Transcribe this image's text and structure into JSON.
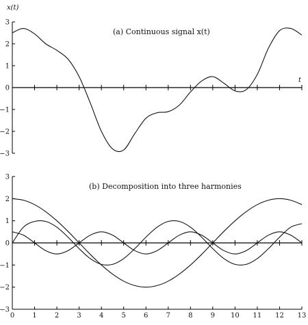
{
  "chart_data": [
    {
      "type": "line",
      "title": "(a) Continuous signal x(t)",
      "ylabel": "x(t)",
      "xlabel": "t",
      "xlim": [
        0,
        13
      ],
      "ylim": [
        -3,
        3
      ],
      "yticks": [
        -3,
        -2,
        -1,
        0,
        1,
        2,
        3
      ],
      "xticks": [
        0,
        1,
        2,
        3,
        4,
        5,
        6,
        7,
        8,
        9,
        10,
        11,
        12,
        13
      ],
      "grid": false,
      "legend": "none",
      "series": [
        {
          "x": [
            0,
            0.5,
            1,
            1.5,
            2,
            2.5,
            3,
            3.5,
            4,
            4.5,
            5,
            5.5,
            6,
            6.5,
            7,
            7.5,
            8,
            8.5,
            9,
            9.5,
            10,
            10.5,
            11,
            11.5,
            12,
            12.5,
            13
          ],
          "values": [
            2.5,
            2.7,
            2.45,
            2.0,
            1.7,
            1.3,
            0.5,
            -0.7,
            -2.0,
            -2.8,
            -2.85,
            -2.1,
            -1.4,
            -1.15,
            -1.1,
            -0.8,
            -0.2,
            0.3,
            0.5,
            0.2,
            -0.15,
            -0.1,
            0.6,
            1.8,
            2.6,
            2.7,
            2.4
          ]
        }
      ]
    },
    {
      "type": "line",
      "title": "(b) Decomposition into three harmonies",
      "ylabel": "",
      "xlabel": "",
      "xlim": [
        0,
        13
      ],
      "ylim": [
        -3,
        3
      ],
      "yticks": [
        -3,
        -2,
        -1,
        0,
        1,
        2,
        3
      ],
      "xticks": [
        0,
        1,
        2,
        3,
        4,
        5,
        6,
        7,
        8,
        9,
        10,
        11,
        12,
        13
      ],
      "grid": false,
      "legend": "none",
      "series": [
        {
          "x": [
            0,
            0.5,
            1,
            1.5,
            2,
            2.5,
            3,
            3.5,
            4,
            4.5,
            5,
            5.5,
            6,
            6.5,
            7,
            7.5,
            8,
            8.5,
            9,
            9.5,
            10,
            10.5,
            11,
            11.5,
            12,
            12.5,
            13
          ],
          "values": [
            2.0,
            1.93,
            1.73,
            1.41,
            1.0,
            0.52,
            0.0,
            -0.52,
            -1.0,
            -1.41,
            -1.73,
            -1.93,
            -2.0,
            -1.93,
            -1.73,
            -1.41,
            -1.0,
            -0.52,
            0.0,
            0.52,
            1.0,
            1.41,
            1.73,
            1.93,
            2.0,
            1.93,
            1.73
          ]
        },
        {
          "x": [
            0,
            0.5,
            1,
            1.5,
            2,
            2.5,
            3,
            3.5,
            4,
            4.5,
            5,
            5.5,
            6,
            6.5,
            7,
            7.5,
            8,
            8.5,
            9,
            9.5,
            10,
            10.5,
            11,
            11.5,
            12,
            12.5,
            13
          ],
          "values": [
            0.0,
            0.71,
            0.97,
            0.97,
            0.71,
            0.26,
            -0.26,
            -0.71,
            -0.97,
            -0.97,
            -0.71,
            -0.26,
            0.26,
            0.71,
            0.97,
            0.97,
            0.71,
            0.26,
            -0.26,
            -0.71,
            -0.97,
            -0.97,
            -0.71,
            -0.26,
            0.26,
            0.71,
            0.87
          ]
        },
        {
          "x": [
            0,
            0.5,
            1,
            1.5,
            2,
            2.5,
            3,
            3.5,
            4,
            4.5,
            5,
            5.5,
            6,
            6.5,
            7,
            7.5,
            8,
            8.5,
            9,
            9.5,
            10,
            10.5,
            11,
            11.5,
            12,
            12.5,
            13
          ],
          "values": [
            0.5,
            0.35,
            0.0,
            -0.35,
            -0.5,
            -0.35,
            0.0,
            0.35,
            0.5,
            0.35,
            0.0,
            -0.35,
            -0.5,
            -0.35,
            0.0,
            0.35,
            0.5,
            0.35,
            0.0,
            -0.35,
            -0.5,
            -0.35,
            0.0,
            0.35,
            0.5,
            0.35,
            0.0
          ]
        }
      ]
    }
  ]
}
